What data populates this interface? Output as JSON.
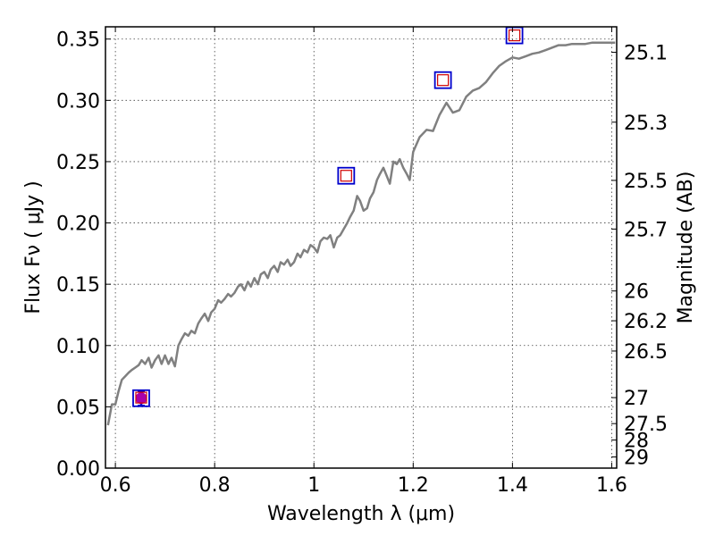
{
  "chart_data": {
    "type": "scatter",
    "xlabel": "Wavelength  λ (μm)",
    "ylabel": "Flux  Fν  ( μJy )",
    "ylabel_right": "Magnitude (AB)",
    "xlim": [
      0.58,
      1.61
    ],
    "ylim": [
      0.0,
      0.36
    ],
    "grid": true,
    "x_ticks": [
      {
        "value": 0.6,
        "label": "0.6"
      },
      {
        "value": 0.8,
        "label": "0.8"
      },
      {
        "value": 1.0,
        "label": "1"
      },
      {
        "value": 1.2,
        "label": "1.2"
      },
      {
        "value": 1.4,
        "label": "1.4"
      },
      {
        "value": 1.6,
        "label": "1.6"
      }
    ],
    "y_ticks": [
      {
        "value": 0.0,
        "label": "0.00"
      },
      {
        "value": 0.05,
        "label": "0.05"
      },
      {
        "value": 0.1,
        "label": "0.10"
      },
      {
        "value": 0.15,
        "label": "0.15"
      },
      {
        "value": 0.2,
        "label": "0.20"
      },
      {
        "value": 0.25,
        "label": "0.25"
      },
      {
        "value": 0.3,
        "label": "0.30"
      },
      {
        "value": 0.35,
        "label": "0.35"
      }
    ],
    "mag_ticks": [
      {
        "flux": 0.3392,
        "label": "25.1"
      },
      {
        "flux": 0.2822,
        "label": "25.3"
      },
      {
        "flux": 0.2347,
        "label": "25.5"
      },
      {
        "flux": 0.195,
        "label": "25.7"
      },
      {
        "flux": 0.1445,
        "label": "26"
      },
      {
        "flux": 0.1202,
        "label": "26.2"
      },
      {
        "flux": 0.0955,
        "label": "26.5"
      },
      {
        "flux": 0.0575,
        "label": "27"
      },
      {
        "flux": 0.0363,
        "label": "27.5"
      },
      {
        "flux": 0.0229,
        "label": "28"
      },
      {
        "flux": 0.0091,
        "label": "29"
      }
    ],
    "model_spectrum": {
      "color": "#808080",
      "x": [
        0.585,
        0.593,
        0.6,
        0.606,
        0.613,
        0.62,
        0.627,
        0.633,
        0.64,
        0.647,
        0.653,
        0.66,
        0.667,
        0.673,
        0.68,
        0.687,
        0.693,
        0.7,
        0.707,
        0.713,
        0.72,
        0.727,
        0.733,
        0.74,
        0.747,
        0.753,
        0.76,
        0.767,
        0.773,
        0.78,
        0.787,
        0.793,
        0.8,
        0.807,
        0.813,
        0.82,
        0.827,
        0.833,
        0.84,
        0.847,
        0.853,
        0.86,
        0.867,
        0.873,
        0.88,
        0.887,
        0.893,
        0.9,
        0.907,
        0.913,
        0.92,
        0.927,
        0.933,
        0.94,
        0.947,
        0.953,
        0.96,
        0.967,
        0.973,
        0.98,
        0.987,
        0.993,
        1.0,
        1.007,
        1.013,
        1.02,
        1.027,
        1.033,
        1.04,
        1.047,
        1.053,
        1.06,
        1.067,
        1.073,
        1.08,
        1.087,
        1.093,
        1.1,
        1.107,
        1.113,
        1.12,
        1.127,
        1.133,
        1.14,
        1.147,
        1.153,
        1.16,
        1.167,
        1.173,
        1.18,
        1.187,
        1.193,
        1.2,
        1.213,
        1.227,
        1.24,
        1.253,
        1.267,
        1.28,
        1.293,
        1.307,
        1.32,
        1.333,
        1.347,
        1.36,
        1.373,
        1.387,
        1.4,
        1.413,
        1.427,
        1.44,
        1.453,
        1.467,
        1.48,
        1.493,
        1.507,
        1.52,
        1.533,
        1.547,
        1.56,
        1.573,
        1.587,
        1.6,
        1.607
      ],
      "y": [
        0.035,
        0.052,
        0.052,
        0.062,
        0.072,
        0.075,
        0.078,
        0.08,
        0.082,
        0.084,
        0.088,
        0.085,
        0.09,
        0.082,
        0.088,
        0.092,
        0.085,
        0.092,
        0.085,
        0.09,
        0.083,
        0.1,
        0.105,
        0.11,
        0.108,
        0.112,
        0.11,
        0.118,
        0.122,
        0.126,
        0.12,
        0.127,
        0.13,
        0.137,
        0.135,
        0.138,
        0.142,
        0.14,
        0.143,
        0.148,
        0.15,
        0.145,
        0.152,
        0.148,
        0.155,
        0.15,
        0.158,
        0.16,
        0.155,
        0.162,
        0.165,
        0.16,
        0.168,
        0.166,
        0.17,
        0.165,
        0.168,
        0.175,
        0.172,
        0.178,
        0.176,
        0.182,
        0.18,
        0.176,
        0.185,
        0.188,
        0.187,
        0.19,
        0.18,
        0.188,
        0.19,
        0.195,
        0.2,
        0.205,
        0.21,
        0.222,
        0.218,
        0.21,
        0.212,
        0.22,
        0.225,
        0.235,
        0.24,
        0.245,
        0.238,
        0.232,
        0.25,
        0.248,
        0.252,
        0.245,
        0.24,
        0.235,
        0.258,
        0.27,
        0.276,
        0.275,
        0.288,
        0.298,
        0.29,
        0.292,
        0.303,
        0.308,
        0.31,
        0.315,
        0.322,
        0.328,
        0.332,
        0.335,
        0.334,
        0.336,
        0.338,
        0.339,
        0.341,
        0.343,
        0.345,
        0.345,
        0.346,
        0.346,
        0.346,
        0.347,
        0.347,
        0.347,
        0.347,
        0.347
      ]
    },
    "observed": {
      "color": "#0000cc",
      "x": [
        0.652
      ],
      "y": [
        0.057
      ],
      "yerr": [
        0.006
      ]
    },
    "photometry_red": {
      "color": "#d00000",
      "x": [
        0.652,
        1.065,
        1.26,
        1.404
      ],
      "y": [
        0.0575,
        0.2385,
        0.3165,
        0.353
      ]
    },
    "photometry_blue": {
      "color": "#0000cc",
      "x": [
        0.652,
        1.065,
        1.26,
        1.404
      ],
      "y": [
        0.057,
        0.2385,
        0.3165,
        0.353
      ]
    },
    "marker_fill": "#aa00aa"
  }
}
